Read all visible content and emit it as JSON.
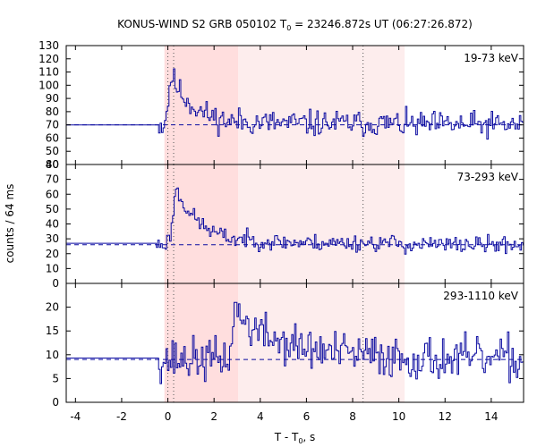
{
  "chart_data": {
    "type": "line",
    "title": "KONUS-WIND S2 GRB 050102 T",
    "title_sub": "0",
    "title_rest": " = 23246.872s UT (06:27:26.872)",
    "xlabel": "T - T",
    "xlabel_sub": "0",
    "xlabel_rest": ", s",
    "ylabel": "counts / 64 ms",
    "xlim": [
      -4.4,
      15.4
    ],
    "x_ticks": [
      -4,
      -2,
      0,
      2,
      4,
      6,
      8,
      10,
      12,
      14
    ],
    "x_tick_labels": [
      "-4",
      "-2",
      "0",
      "2",
      "4",
      "6",
      "8",
      "10",
      "12",
      "14"
    ],
    "shaded_regions": [
      {
        "x0": -0.15,
        "x1": 3.05,
        "color": "#ffdede"
      },
      {
        "x0": 3.05,
        "x1": 10.25,
        "color": "#fdeded"
      }
    ],
    "vlines": [
      0.0,
      0.25,
      8.45
    ],
    "line_color": "#0a0aa0",
    "background_color": "#000000",
    "bin_width": 0.064,
    "panels": [
      {
        "band": "19-73 keV",
        "ylim": [
          40,
          130
        ],
        "y_ticks": [
          40,
          50,
          60,
          70,
          80,
          90,
          100,
          110,
          120,
          130
        ],
        "y_tick_labels": [
          "40",
          "50",
          "60",
          "70",
          "80",
          "90",
          "100",
          "110",
          "120",
          "130"
        ],
        "background": 70,
        "pre_level": 70,
        "pre_end": -0.4,
        "peak": 120,
        "peak_time": 0.1,
        "noise": 7,
        "decay": 1.0,
        "tail": 5,
        "seed": 11
      },
      {
        "band": "73-293 keV",
        "ylim": [
          0,
          80
        ],
        "y_ticks": [
          0,
          10,
          20,
          30,
          40,
          50,
          60,
          70,
          80
        ],
        "y_tick_labels": [
          "0",
          "10",
          "20",
          "30",
          "40",
          "50",
          "60",
          "70",
          "80"
        ],
        "background": 26,
        "pre_level": 27,
        "pre_end": -0.5,
        "peak": 77,
        "peak_time": 0.3,
        "noise": 4,
        "decay": 1.1,
        "tail": 6,
        "seed": 23
      },
      {
        "band": "293-1110 keV",
        "ylim": [
          0,
          25
        ],
        "y_ticks": [
          0,
          5,
          10,
          15,
          20
        ],
        "y_tick_labels": [
          "0",
          "5",
          "10",
          "15",
          "20"
        ],
        "background": 9,
        "pre_level": 9.3,
        "pre_end": -0.4,
        "peak": 21,
        "peak_time": 2.9,
        "noise": 3.2,
        "decay": 2.0,
        "tail": 2,
        "seed": 37
      }
    ]
  }
}
